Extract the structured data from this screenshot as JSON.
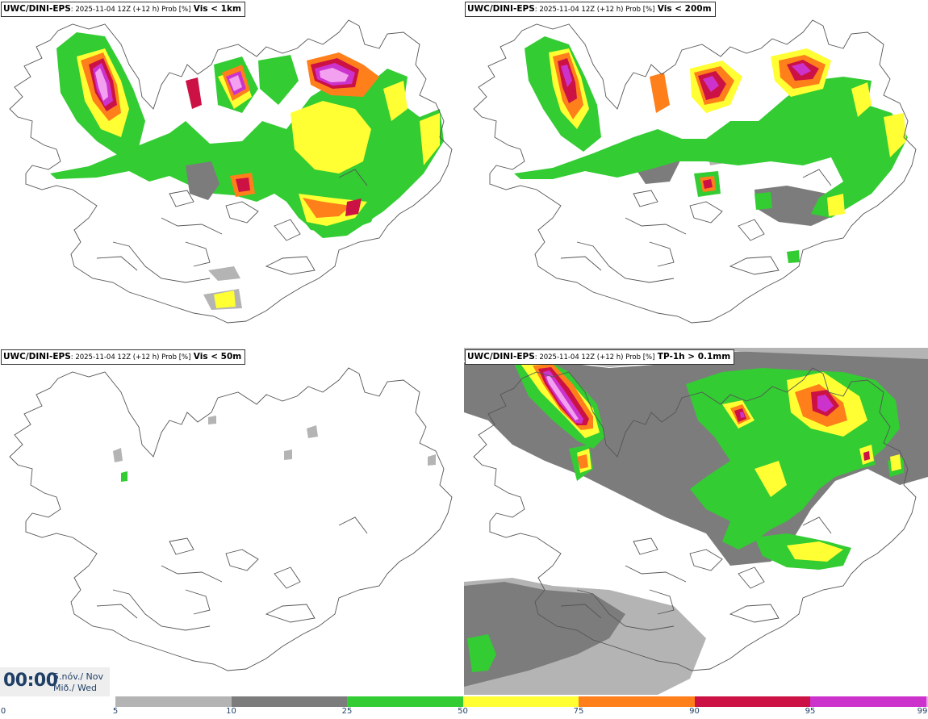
{
  "panels": [
    {
      "model": "UWC/DINI-EPS",
      "meta": ": 2025-11-04 12Z (+12 h) Prob [%]",
      "field": "Vis < 1km"
    },
    {
      "model": "UWC/DINI-EPS",
      "meta": ": 2025-11-04 12Z (+12 h) Prob [%]",
      "field": "Vis < 200m"
    },
    {
      "model": "UWC/DINI-EPS",
      "meta": ": 2025-11-04 12Z (+12 h) Prob [%]",
      "field": "Vis < 50m"
    },
    {
      "model": "UWC/DINI-EPS",
      "meta": ": 2025-11-04 12Z (+12 h) Prob [%]",
      "field": "TP-1h > 0.1mm"
    }
  ],
  "time": {
    "clock": "00:00",
    "date_line1": "5.nóv./ Nov",
    "date_line2": "Mið./ Wed"
  },
  "colorbar": {
    "ticks": [
      "0",
      "5",
      "10",
      "25",
      "50",
      "75",
      "90",
      "95",
      "99"
    ],
    "bins": [
      {
        "from": "5",
        "to": "10",
        "color": "#b4b4b4"
      },
      {
        "from": "10",
        "to": "25",
        "color": "#7c7c7c"
      },
      {
        "from": "25",
        "to": "50",
        "color": "#33cc33"
      },
      {
        "from": "50",
        "to": "75",
        "color": "#ffff33"
      },
      {
        "from": "75",
        "to": "90",
        "color": "#ff7f1a"
      },
      {
        "from": "90",
        "to": "95",
        "color": "#cc1144"
      },
      {
        "from": "95",
        "to": "99",
        "color": "#cc33cc"
      }
    ],
    "top_color": "#f4a0f0"
  },
  "colors": {
    "coastline": "#555555",
    "p5": "#b4b4b4",
    "p10": "#7c7c7c",
    "p25": "#33cc33",
    "p50": "#ffff33",
    "p75": "#ff7f1a",
    "p90": "#cc1144",
    "p95": "#cc33cc",
    "p99": "#f4a0f0"
  }
}
